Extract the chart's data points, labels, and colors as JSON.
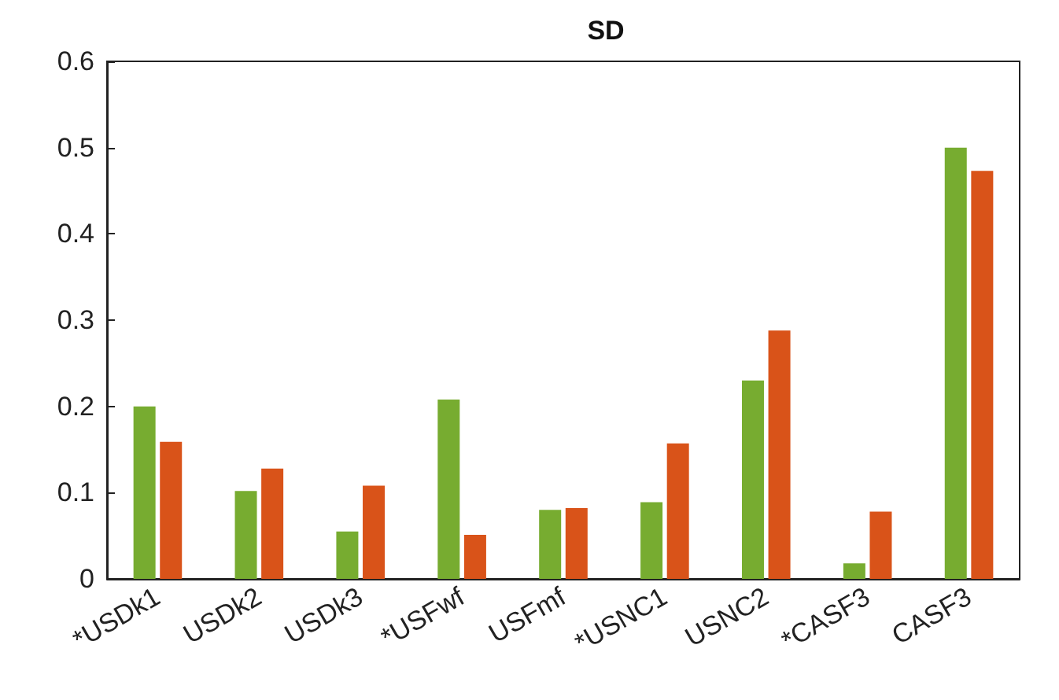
{
  "chart_data": {
    "type": "bar",
    "title": "SD",
    "categories": [
      "*USDk1",
      "USDk2",
      "USDk3",
      "*USFwf",
      "USFmf",
      "*USNC1",
      "USNC2",
      "*CASF3",
      "CASF3"
    ],
    "series": [
      {
        "color": "#77ac30",
        "values": [
          0.2,
          0.102,
          0.055,
          0.208,
          0.08,
          0.089,
          0.23,
          0.018,
          0.5
        ]
      },
      {
        "color": "#d95319",
        "values": [
          0.159,
          0.128,
          0.108,
          0.051,
          0.082,
          0.157,
          0.288,
          0.078,
          0.473
        ]
      }
    ],
    "ylim": [
      0,
      0.6
    ],
    "yticks": [
      0,
      0.1,
      0.2,
      0.3,
      0.4,
      0.5,
      0.6
    ],
    "grid": false
  }
}
